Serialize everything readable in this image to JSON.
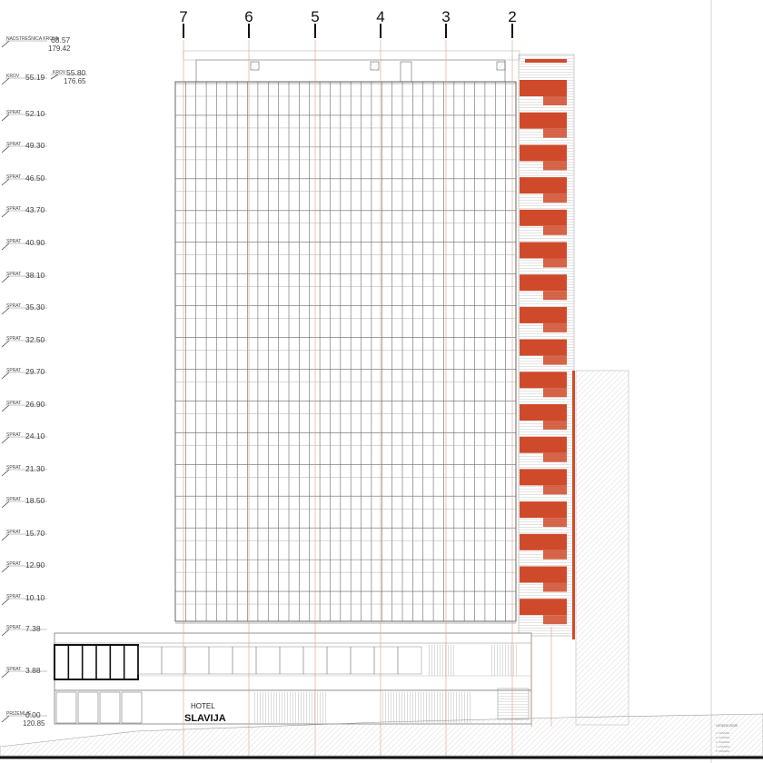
{
  "axes": [
    "7",
    "6",
    "5",
    "4",
    "3",
    "2"
  ],
  "levels": [
    {
      "prefix": "NADSTREŠNICA KROVA",
      "value": "68.57",
      "sub": "179.42"
    },
    {
      "prefix": "KROV",
      "value": "55.19",
      "sub": ""
    },
    {
      "prefix": "SPRAT",
      "value": "52.10",
      "sub": ""
    },
    {
      "prefix": "SPRAT",
      "value": "49.30",
      "sub": ""
    },
    {
      "prefix": "SPRAT",
      "value": "46.50",
      "sub": ""
    },
    {
      "prefix": "SPRAT",
      "value": "43.70",
      "sub": ""
    },
    {
      "prefix": "SPRAT",
      "value": "40.90",
      "sub": ""
    },
    {
      "prefix": "SPRAT",
      "value": "38.10",
      "sub": ""
    },
    {
      "prefix": "SPRAT",
      "value": "35.30",
      "sub": ""
    },
    {
      "prefix": "SPRAT",
      "value": "32.50",
      "sub": ""
    },
    {
      "prefix": "SPRAT",
      "value": "29.70",
      "sub": ""
    },
    {
      "prefix": "SPRAT",
      "value": "26.90",
      "sub": ""
    },
    {
      "prefix": "SPRAT",
      "value": "24.10",
      "sub": ""
    },
    {
      "prefix": "SPRAT",
      "value": "21.30",
      "sub": ""
    },
    {
      "prefix": "SPRAT",
      "value": "18.50",
      "sub": ""
    },
    {
      "prefix": "SPRAT",
      "value": "15.70",
      "sub": ""
    },
    {
      "prefix": "SPRAT",
      "value": "12.90",
      "sub": ""
    },
    {
      "prefix": "SPRAT",
      "value": "10.10",
      "sub": ""
    },
    {
      "prefix": "SPRAT",
      "value": "7.38",
      "sub": ""
    },
    {
      "prefix": "SPRAT",
      "value": "3.88",
      "sub": ""
    },
    {
      "prefix": "PRIZEMLJE",
      "value": "0.00",
      "sub": "120.85"
    }
  ],
  "tower_top_mark": {
    "prefix": "KROV",
    "value": "55.80",
    "sub": "176.65"
  },
  "sign": {
    "line1": "HOTEL",
    "line2": "SLAVIJA"
  },
  "legend": {
    "title": "LEGEND BOJE",
    "lines": [
      "1. FASADA...",
      "2. FASADA...",
      "3. FASADA...",
      "4. FASADA...",
      "5. FASADA..."
    ]
  },
  "colors": {
    "accent": "#cf4a2a",
    "line": "#555555",
    "grid": "#666666",
    "hatch": "#bbbbbb"
  }
}
